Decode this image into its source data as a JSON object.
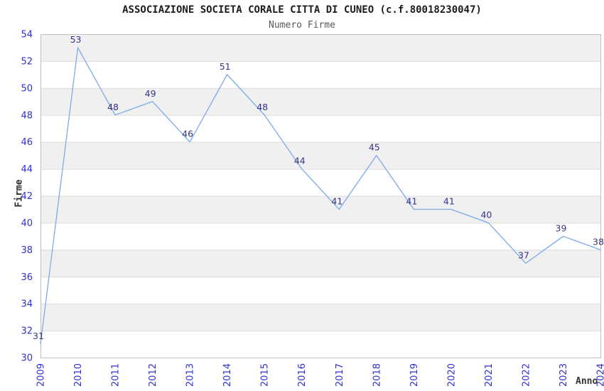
{
  "chart_data": {
    "type": "line",
    "title": "ASSOCIAZIONE SOCIETA CORALE CITTA DI CUNEO (c.f.80018230047)",
    "subtitle": "Numero Firme",
    "xlabel": "Anno",
    "ylabel": "Firme",
    "categories": [
      "2009",
      "2010",
      "2011",
      "2012",
      "2013",
      "2014",
      "2015",
      "2016",
      "2017",
      "2018",
      "2019",
      "2020",
      "2021",
      "2022",
      "2023",
      "2024"
    ],
    "series": [
      {
        "name": "Numero Firme",
        "values": [
          31,
          53,
          48,
          49,
          46,
          51,
          48,
          44,
          41,
          45,
          41,
          41,
          40,
          37,
          39,
          38
        ]
      }
    ],
    "ylim": [
      30,
      54
    ],
    "ytick_step": 2,
    "grid": "horizontal-bands-alternating",
    "legend": "none",
    "data_labels_visible": true,
    "colors": {
      "line": "#82afe6",
      "band_fill": "#f0f0f0",
      "grid_line": "#dcdcdc",
      "plot_border": "#bfbfbf",
      "tick_label": "#3030d0",
      "data_label": "#353583",
      "title": "#1c1c1c",
      "subtitle": "#5a5a5a",
      "axis_title": "#2e2e2e",
      "background": "#ffffff"
    }
  }
}
